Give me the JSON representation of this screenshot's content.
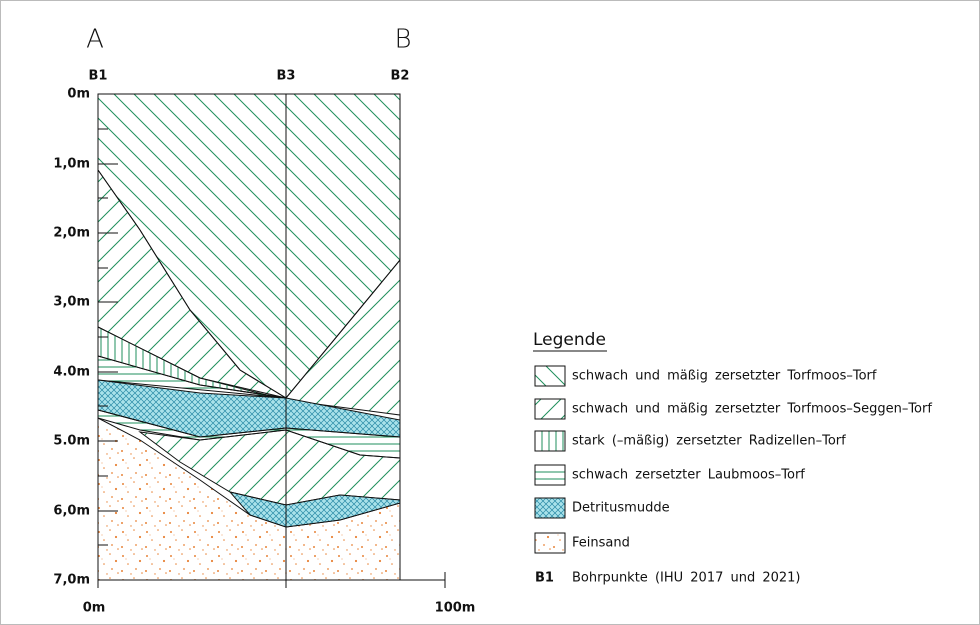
{
  "header": {
    "left": "A",
    "right": "B"
  },
  "boreholes": [
    "B1",
    "B3",
    "B2"
  ],
  "depth_axis": {
    "labels": [
      "0m",
      "1,0m",
      "2,0m",
      "3,0m",
      "4.0m",
      "5.0m",
      "6,0m",
      "7,0m"
    ]
  },
  "distance_axis": {
    "labels": [
      "0m",
      "100m"
    ]
  },
  "legend": {
    "title": "Legende",
    "items": [
      "schwach und mäßig zersetzter Torfmoos–Torf",
      "schwach und mäßig zersetzter Torfmoos–Seggen–Torf",
      "stark (–mäßig) zersetzter Radizellen–Torf",
      "schwach zersetzter Laubmoos–Torf",
      "Detritusmudde",
      "Feinsand"
    ],
    "borehole_key": {
      "symbol": "B1",
      "text": "Bohrpunkte (IHU 2017 und 2021)"
    }
  }
}
